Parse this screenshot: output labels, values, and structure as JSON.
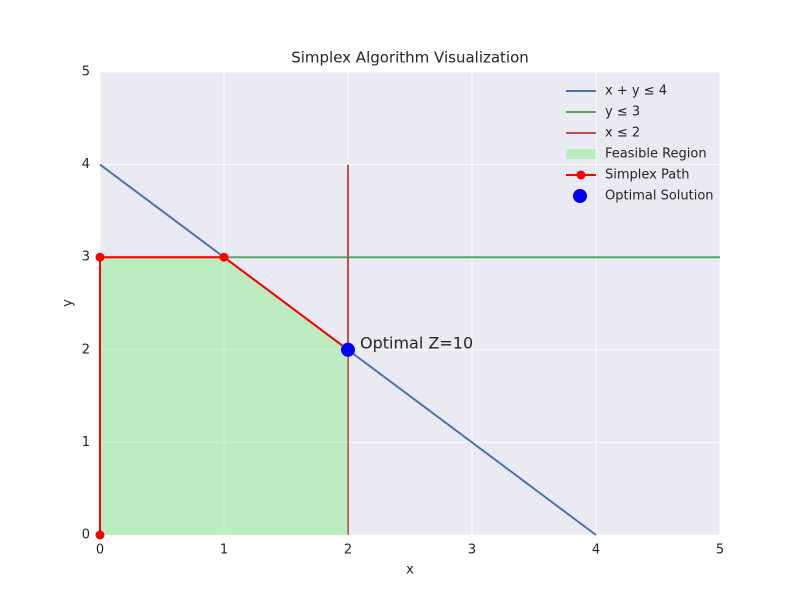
{
  "chart_data": {
    "type": "line",
    "title": "Simplex Algorithm Visualization",
    "x_label": "x",
    "y_label": "y",
    "xlim": [
      0,
      5
    ],
    "ylim": [
      0,
      5
    ],
    "xticks": [
      0,
      1,
      2,
      3,
      4,
      5
    ],
    "yticks": [
      0,
      1,
      2,
      3,
      4,
      5
    ],
    "grid": true,
    "legend": "upper right",
    "series": [
      {
        "name": "x + y ≤ 4",
        "style": "line",
        "color": "#4c72b0",
        "x": [
          0,
          4
        ],
        "values": [
          4,
          0
        ]
      },
      {
        "name": "y ≤ 3",
        "style": "line",
        "color": "#55a868",
        "x": [
          0,
          5
        ],
        "values": [
          3,
          3
        ]
      },
      {
        "name": "x ≤ 2",
        "style": "line",
        "color": "#c44e52",
        "x": [
          2,
          2
        ],
        "values": [
          0,
          4
        ]
      },
      {
        "name": "Feasible Region",
        "style": "fill",
        "color": "#90ee90",
        "x": [
          0,
          0,
          1,
          2,
          2
        ],
        "values": [
          0,
          3,
          3,
          2,
          0
        ]
      },
      {
        "name": "Simplex Path",
        "style": "line-markers",
        "color": "#ff0000",
        "x": [
          0,
          0,
          1,
          2
        ],
        "values": [
          0,
          3,
          3,
          2
        ]
      },
      {
        "name": "Optimal Solution",
        "style": "marker",
        "color": "#0000ff",
        "x": [
          2
        ],
        "values": [
          2
        ]
      }
    ],
    "annotation": "Optimal Z=10"
  }
}
